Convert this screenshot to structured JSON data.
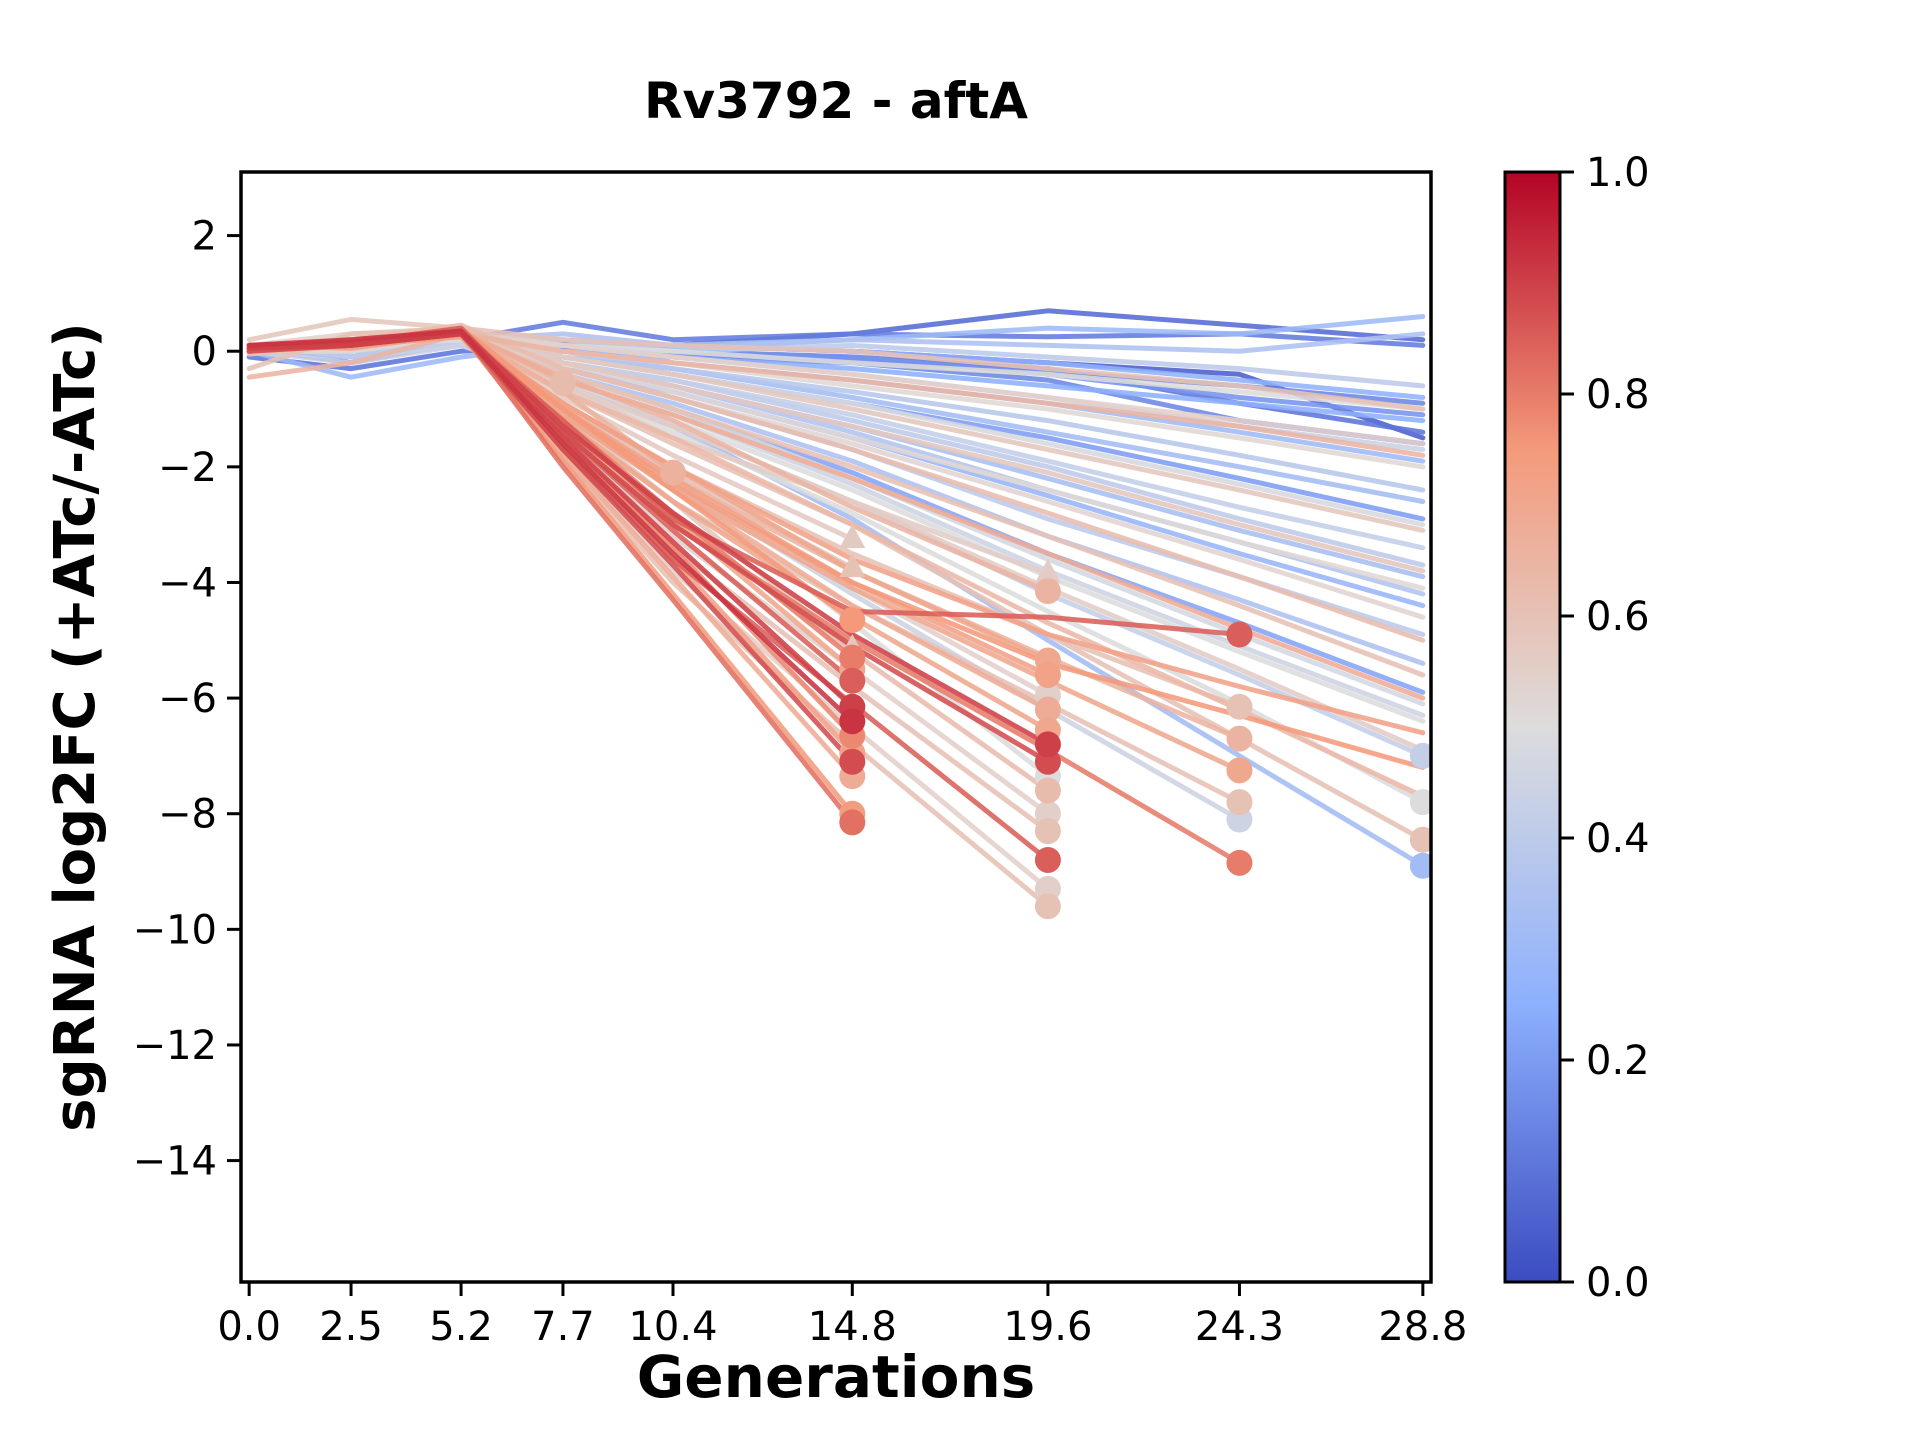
{
  "chart_data": {
    "type": "line",
    "title": "Rv3792 - aftA",
    "xlabel": "Generations",
    "ylabel": "sgRNA log2FC (+ATc/-ATc)",
    "x_ticks": [
      0.0,
      2.5,
      5.2,
      7.7,
      10.4,
      14.8,
      19.6,
      24.3,
      28.8
    ],
    "x_tick_labels": [
      "0.0",
      "2.5",
      "5.2",
      "7.7",
      "10.4",
      "14.8",
      "19.6",
      "24.3",
      "28.8"
    ],
    "y_ticks": [
      2,
      0,
      -2,
      -4,
      -6,
      -8,
      -10,
      -12,
      -14
    ],
    "y_tick_labels": [
      "2",
      "0",
      "−2",
      "−4",
      "−6",
      "−8",
      "−10",
      "−12",
      "−14"
    ],
    "xlim": [
      -0.2,
      29.0
    ],
    "ylim": [
      -16.1,
      3.1
    ],
    "grid": false,
    "colorbar": {
      "ticks": [
        "1.0",
        "0.8",
        "0.6",
        "0.4",
        "0.2",
        "0.0"
      ],
      "cmap_name": "coolwarm",
      "cmap_anchors": [
        {
          "t": 0.0,
          "color": "#3b4cc0"
        },
        {
          "t": 0.25,
          "color": "#8db0fe"
        },
        {
          "t": 0.5,
          "color": "#dddcdc"
        },
        {
          "t": 0.75,
          "color": "#f49a7b"
        },
        {
          "t": 1.0,
          "color": "#b40426"
        }
      ]
    },
    "x": [
      0,
      2.5,
      5.2,
      7.7,
      10.4,
      14.8,
      19.6,
      24.3,
      28.8
    ],
    "series": [
      {
        "c": 0.62,
        "y": [
          0.1,
          0.2,
          0.35,
          -0.55
        ],
        "marker": "circle"
      },
      {
        "c": 0.66,
        "y": [
          0.0,
          0.1,
          0.3,
          -0.7,
          -2.1
        ],
        "marker": "circle"
      },
      {
        "c": 0.57,
        "y": [
          0.1,
          0.05,
          0.3,
          -0.8,
          -1.8,
          -3.25
        ],
        "marker": "triangle"
      },
      {
        "c": 0.6,
        "y": [
          -0.05,
          0.1,
          0.25,
          -0.9,
          -2.1,
          -3.75
        ],
        "marker": "triangle"
      },
      {
        "c": 0.58,
        "y": [
          0.05,
          0.15,
          0.3,
          -1.1,
          -2.6,
          -5.15
        ],
        "marker": "triangle"
      },
      {
        "c": 0.75,
        "y": [
          0.1,
          0.1,
          0.3,
          -1.0,
          -2.4,
          -4.65
        ],
        "marker": "circle"
      },
      {
        "c": 0.8,
        "y": [
          0.05,
          0.2,
          0.35,
          -1.2,
          -2.8,
          -5.3
        ],
        "marker": "circle"
      },
      {
        "c": 0.7,
        "y": [
          0.0,
          0.1,
          0.3,
          -1.3,
          -2.9,
          -5.5
        ],
        "marker": "circle"
      },
      {
        "c": 0.85,
        "y": [
          0.1,
          0.15,
          0.4,
          -1.4,
          -3.1,
          -5.7
        ],
        "marker": "circle"
      },
      {
        "c": 0.9,
        "y": [
          0.05,
          0.1,
          0.3,
          -1.5,
          -3.3,
          -6.15
        ],
        "marker": "circle"
      },
      {
        "c": 0.92,
        "y": [
          0.1,
          0.2,
          0.35,
          -1.6,
          -3.5,
          -6.4
        ],
        "marker": "circle"
      },
      {
        "c": 0.78,
        "y": [
          0.0,
          0.15,
          0.3,
          -1.5,
          -3.4,
          -6.65
        ],
        "marker": "circle"
      },
      {
        "c": 0.72,
        "y": [
          0.1,
          0.1,
          0.25,
          -1.6,
          -3.6,
          -6.95
        ],
        "marker": "circle"
      },
      {
        "c": 0.88,
        "y": [
          0.05,
          0.15,
          0.35,
          -1.7,
          -3.7,
          -7.1
        ],
        "marker": "circle"
      },
      {
        "c": 0.68,
        "y": [
          0.0,
          0.1,
          0.3,
          -1.8,
          -3.9,
          -7.35
        ],
        "marker": "circle"
      },
      {
        "c": 0.74,
        "y": [
          0.1,
          0.05,
          0.3,
          -1.9,
          -4.2,
          -8.0
        ],
        "marker": "circle"
      },
      {
        "c": 0.82,
        "y": [
          0.05,
          0.1,
          0.35,
          -2.0,
          -4.3,
          -8.15
        ],
        "marker": "circle"
      },
      {
        "c": 0.56,
        "y": [
          0.1,
          0.1,
          0.3,
          -0.6,
          -1.5,
          -2.6,
          -3.85
        ],
        "marker": "triangle"
      },
      {
        "c": 0.65,
        "y": [
          0.0,
          0.2,
          0.3,
          -0.45,
          -1.2,
          -2.7,
          -4.15
        ],
        "marker": "circle"
      },
      {
        "c": 0.7,
        "y": [
          0.1,
          0.1,
          0.3,
          -0.9,
          -2.0,
          -3.8,
          -5.35
        ],
        "marker": "circle"
      },
      {
        "c": 0.72,
        "y": [
          0.05,
          0.15,
          0.3,
          -1.0,
          -2.2,
          -4.0,
          -5.6
        ],
        "marker": "circle"
      },
      {
        "c": 0.55,
        "y": [
          0.0,
          0.1,
          0.25,
          -0.9,
          -2.1,
          -4.1,
          -5.95
        ],
        "marker": "circle"
      },
      {
        "c": 0.68,
        "y": [
          0.1,
          0.2,
          0.3,
          -1.1,
          -2.4,
          -4.4,
          -6.2
        ],
        "marker": "circle"
      },
      {
        "c": 0.7,
        "y": [
          0.05,
          0.1,
          0.3,
          -1.2,
          -2.6,
          -4.6,
          -6.55
        ],
        "marker": "circle"
      },
      {
        "c": 0.9,
        "y": [
          0.1,
          0.15,
          0.35,
          -1.3,
          -2.8,
          -4.9,
          -6.8
        ],
        "marker": "circle"
      },
      {
        "c": 0.88,
        "y": [
          0.0,
          0.1,
          0.3,
          -1.4,
          -3.0,
          -5.1,
          -7.1
        ],
        "marker": "circle"
      },
      {
        "c": 0.5,
        "y": [
          0.1,
          0.1,
          0.25,
          -1.0,
          -2.3,
          -4.7,
          -7.35
        ],
        "marker": "circle"
      },
      {
        "c": 0.62,
        "y": [
          0.05,
          0.2,
          0.3,
          -1.3,
          -2.9,
          -5.2,
          -7.6
        ],
        "marker": "circle"
      },
      {
        "c": 0.55,
        "y": [
          0.0,
          0.1,
          0.3,
          -1.5,
          -3.2,
          -5.5,
          -8.0
        ],
        "marker": "circle"
      },
      {
        "c": 0.6,
        "y": [
          0.1,
          0.1,
          0.35,
          -1.6,
          -3.4,
          -5.8,
          -8.3
        ],
        "marker": "circle"
      },
      {
        "c": 0.85,
        "y": [
          0.05,
          0.15,
          0.3,
          -1.7,
          -3.6,
          -6.1,
          -8.8
        ],
        "marker": "circle"
      },
      {
        "c": 0.55,
        "y": [
          0.1,
          0.1,
          0.3,
          -1.8,
          -3.8,
          -6.5,
          -9.3
        ],
        "marker": "circle"
      },
      {
        "c": 0.6,
        "y": [
          0.0,
          0.15,
          0.3,
          -1.9,
          -4.0,
          -6.8,
          -9.6
        ],
        "marker": "circle"
      },
      {
        "c": 0.85,
        "y": [
          0.05,
          0.1,
          0.3,
          -1.2,
          -2.9,
          -4.5,
          -4.6,
          -4.9
        ],
        "marker": "circle"
      },
      {
        "c": 0.6,
        "y": [
          0.1,
          0.15,
          0.3,
          -0.9,
          -2.0,
          -3.5,
          -4.9,
          -6.15
        ],
        "marker": "circle"
      },
      {
        "c": 0.65,
        "y": [
          0.0,
          0.1,
          0.3,
          -1.0,
          -2.2,
          -3.8,
          -5.3,
          -6.7
        ],
        "marker": "circle"
      },
      {
        "c": 0.7,
        "y": [
          0.1,
          0.1,
          0.35,
          -1.1,
          -2.4,
          -4.1,
          -5.7,
          -7.25
        ],
        "marker": "circle"
      },
      {
        "c": 0.6,
        "y": [
          0.05,
          0.15,
          0.3,
          -1.2,
          -2.6,
          -4.4,
          -6.1,
          -7.8
        ],
        "marker": "circle"
      },
      {
        "c": 0.45,
        "y": [
          0.1,
          0.1,
          0.25,
          -1.0,
          -2.3,
          -4.2,
          -6.2,
          -8.1
        ],
        "marker": "circle"
      },
      {
        "c": 0.8,
        "y": [
          0.0,
          0.1,
          0.3,
          -1.4,
          -3.0,
          -5.0,
          -6.9,
          -8.85
        ],
        "marker": "circle"
      },
      {
        "c": 0.42,
        "y": [
          0.1,
          0.1,
          0.2,
          -0.5,
          -1.3,
          -2.6,
          -4.2,
          -5.6,
          -7.0
        ],
        "marker": "circle"
      },
      {
        "c": 0.5,
        "y": [
          0.0,
          0.1,
          0.2,
          -0.6,
          -1.4,
          -2.8,
          -4.5,
          -6.1,
          -7.8
        ],
        "marker": "circle"
      },
      {
        "c": 0.6,
        "y": [
          0.1,
          0.15,
          0.25,
          -0.7,
          -1.6,
          -3.0,
          -4.9,
          -6.7,
          -8.45
        ],
        "marker": "circle"
      },
      {
        "c": 0.32,
        "y": [
          0.05,
          0.1,
          0.2,
          -0.5,
          -1.3,
          -2.9,
          -5.0,
          -7.0,
          -8.9
        ],
        "marker": "circle"
      },
      {
        "c": 0.08,
        "y": [
          0.0,
          -0.1,
          0.1,
          0.15,
          0.1,
          0.3,
          0.7,
          0.45,
          0.2
        ]
      },
      {
        "c": 0.12,
        "y": [
          0.1,
          0.0,
          0.2,
          0.5,
          0.2,
          0.3,
          0.25,
          0.3,
          0.1
        ]
      },
      {
        "c": 0.1,
        "y": [
          -0.1,
          -0.3,
          0.0,
          0.1,
          0.0,
          -0.1,
          -0.3,
          -0.9,
          -1.4
        ]
      },
      {
        "c": 0.15,
        "y": [
          0.0,
          0.1,
          0.1,
          0.0,
          -0.1,
          -0.2,
          -0.5,
          -1.2,
          -1.6
        ]
      },
      {
        "c": 0.05,
        "y": [
          0.05,
          -0.2,
          0.15,
          0.05,
          0.1,
          0.0,
          -0.2,
          -0.4,
          -1.5
        ]
      },
      {
        "c": 0.3,
        "y": [
          0.0,
          -0.45,
          -0.1,
          0.1,
          0.05,
          0.2,
          0.4,
          0.3,
          0.6
        ]
      },
      {
        "c": 0.35,
        "y": [
          0.1,
          0.0,
          0.2,
          0.3,
          0.1,
          0.2,
          0.1,
          0.0,
          0.3
        ]
      },
      {
        "c": 0.4,
        "y": [
          0.0,
          0.1,
          0.15,
          0.2,
          0.0,
          0.1,
          -0.1,
          -0.3,
          -0.6
        ]
      },
      {
        "c": 0.25,
        "y": [
          0.1,
          -0.1,
          0.1,
          0.0,
          -0.1,
          -0.3,
          -0.6,
          -0.9,
          -1.2
        ]
      },
      {
        "c": 0.3,
        "y": [
          0.0,
          0.0,
          0.2,
          0.1,
          -0.2,
          -0.5,
          -0.9,
          -1.4,
          -1.9
        ]
      },
      {
        "c": 0.38,
        "y": [
          0.1,
          0.1,
          0.2,
          0.0,
          -0.3,
          -0.7,
          -1.2,
          -1.8,
          -2.4
        ]
      },
      {
        "c": 0.2,
        "y": [
          0.0,
          -0.1,
          0.1,
          -0.1,
          -0.4,
          -0.9,
          -1.5,
          -2.2,
          -2.9
        ]
      },
      {
        "c": 0.42,
        "y": [
          0.05,
          0.0,
          0.15,
          -0.2,
          -0.5,
          -1.1,
          -1.9,
          -2.7,
          -3.4
        ]
      },
      {
        "c": 0.33,
        "y": [
          0.1,
          0.0,
          0.2,
          -0.2,
          -0.6,
          -1.3,
          -2.2,
          -3.1,
          -3.9
        ]
      },
      {
        "c": 0.28,
        "y": [
          0.0,
          0.1,
          0.1,
          -0.3,
          -0.7,
          -1.5,
          -2.5,
          -3.5,
          -4.4
        ]
      },
      {
        "c": 0.4,
        "y": [
          0.1,
          -0.1,
          0.15,
          -0.3,
          -0.8,
          -1.7,
          -2.9,
          -3.9,
          -4.9
        ]
      },
      {
        "c": 0.35,
        "y": [
          0.0,
          0.0,
          0.1,
          -0.4,
          -0.9,
          -1.9,
          -3.2,
          -4.3,
          -5.4
        ]
      },
      {
        "c": 0.22,
        "y": [
          0.05,
          0.1,
          0.2,
          -0.4,
          -1.0,
          -2.1,
          -3.5,
          -4.7,
          -5.9
        ]
      },
      {
        "c": 0.45,
        "y": [
          0.0,
          -0.2,
          0.1,
          -0.5,
          -1.1,
          -2.3,
          -3.8,
          -5.1,
          -6.3
        ]
      },
      {
        "c": 0.5,
        "y": [
          0.1,
          0.2,
          0.3,
          0.1,
          0.0,
          -0.2,
          -0.4,
          -0.7,
          -1.0
        ]
      },
      {
        "c": 0.52,
        "y": [
          0.0,
          0.1,
          0.25,
          0.0,
          -0.2,
          -0.6,
          -1.0,
          -1.5,
          -2.0
        ]
      },
      {
        "c": 0.48,
        "y": [
          0.1,
          0.0,
          0.3,
          -0.1,
          -0.4,
          -0.9,
          -1.6,
          -2.3,
          -3.0
        ]
      },
      {
        "c": 0.53,
        "y": [
          0.0,
          0.15,
          0.35,
          -0.3,
          -0.8,
          -1.6,
          -2.6,
          -3.6,
          -4.6
        ]
      },
      {
        "c": 0.5,
        "y": [
          0.1,
          0.1,
          0.3,
          -0.5,
          -1.2,
          -2.4,
          -3.9,
          -5.2,
          -6.4
        ]
      },
      {
        "c": 0.47,
        "y": [
          0.0,
          0.1,
          0.2,
          -0.4,
          -1.0,
          -2.2,
          -3.6,
          -4.9,
          -6.1
        ]
      },
      {
        "c": 0.6,
        "y": [
          -0.3,
          0.3,
          0.4,
          0.2,
          0.1,
          0.0,
          -0.3,
          -0.6,
          -1.0
        ]
      },
      {
        "c": 0.65,
        "y": [
          -0.45,
          -0.2,
          0.3,
          0.0,
          -0.2,
          -0.5,
          -0.9,
          -1.3,
          -1.8
        ]
      },
      {
        "c": 0.58,
        "y": [
          0.2,
          0.55,
          0.4,
          -0.1,
          -0.4,
          -1.0,
          -1.7,
          -2.4,
          -3.1
        ]
      },
      {
        "c": 0.62,
        "y": [
          0.1,
          0.2,
          0.45,
          -0.3,
          -0.8,
          -1.7,
          -2.8,
          -3.9,
          -5.0
        ]
      },
      {
        "c": 0.68,
        "y": [
          0.0,
          0.1,
          0.35,
          -0.5,
          -1.1,
          -2.2,
          -3.5,
          -4.8,
          -6.0
        ]
      },
      {
        "c": 0.56,
        "y": [
          0.1,
          0.2,
          0.3,
          -0.6,
          -1.3,
          -2.6,
          -4.1,
          -5.5,
          -6.9
        ]
      },
      {
        "c": 0.64,
        "y": [
          0.0,
          0.1,
          0.3,
          -0.7,
          -1.5,
          -3.0,
          -4.7,
          -6.2,
          -7.7
        ]
      },
      {
        "c": 0.75,
        "y": [
          0.05,
          0.15,
          0.4,
          -1.0,
          -2.3,
          -4.0,
          -5.4,
          -6.3,
          -7.2
        ]
      },
      {
        "c": 0.72,
        "y": [
          0.1,
          0.1,
          0.3,
          -0.9,
          -2.0,
          -3.6,
          -4.9,
          -5.8,
          -6.6
        ]
      },
      {
        "c": 0.18,
        "y": [
          0.0,
          0.05,
          0.15,
          0.1,
          0.0,
          -0.1,
          -0.4,
          -0.8,
          -1.1
        ]
      },
      {
        "c": 0.26,
        "y": [
          0.1,
          0.0,
          0.2,
          0.2,
          0.1,
          0.0,
          -0.2,
          -0.5,
          -0.8
        ]
      },
      {
        "c": 0.44,
        "y": [
          0.0,
          0.1,
          0.2,
          0.1,
          -0.1,
          -0.4,
          -0.8,
          -1.3,
          -1.7
        ]
      },
      {
        "c": 0.32,
        "y": [
          0.05,
          0.0,
          0.1,
          -0.1,
          -0.3,
          -0.8,
          -1.4,
          -2.0,
          -2.6
        ]
      },
      {
        "c": 0.4,
        "y": [
          0.1,
          0.05,
          0.2,
          -0.2,
          -0.5,
          -1.2,
          -2.0,
          -2.9,
          -3.7
        ]
      },
      {
        "c": 0.36,
        "y": [
          0.0,
          -0.1,
          0.1,
          -0.2,
          -0.6,
          -1.4,
          -2.4,
          -3.3,
          -4.2
        ]
      },
      {
        "c": 0.15,
        "y": [
          0.1,
          0.0,
          0.15,
          0.05,
          -0.05,
          -0.15,
          -0.35,
          -0.6,
          -0.9
        ]
      },
      {
        "c": 0.55,
        "y": [
          0.1,
          0.3,
          0.35,
          0.1,
          -0.1,
          -0.4,
          -0.8,
          -1.2,
          -1.6
        ]
      },
      {
        "c": 0.58,
        "y": [
          0.0,
          0.2,
          0.3,
          -0.2,
          -0.6,
          -1.3,
          -2.1,
          -3.0,
          -3.8
        ]
      },
      {
        "c": 0.6,
        "y": [
          0.1,
          0.1,
          0.3,
          -0.4,
          -1.0,
          -2.0,
          -3.2,
          -4.4,
          -5.6
        ]
      },
      {
        "c": 0.52,
        "y": [
          0.0,
          0.0,
          0.25,
          -0.2,
          -0.7,
          -1.5,
          -2.4,
          -3.3,
          -4.1
        ]
      }
    ]
  }
}
